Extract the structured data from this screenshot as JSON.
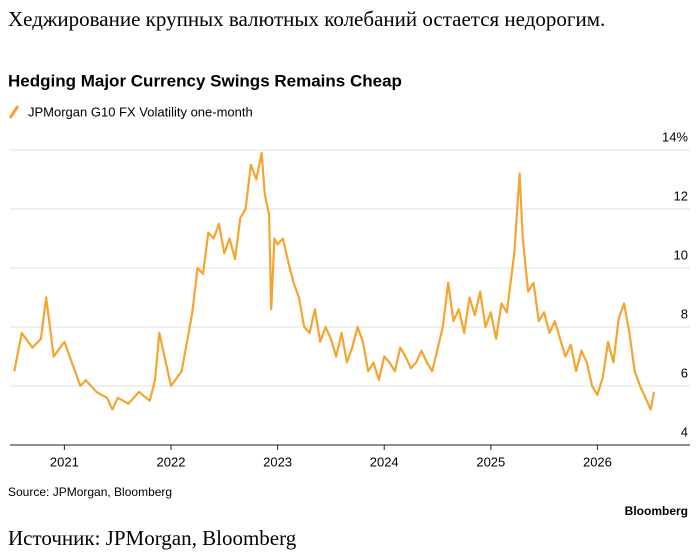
{
  "header": {
    "text": "Хеджирование крупных валютных колебаний остается недорогим."
  },
  "chart_data": {
    "type": "line",
    "title": "Hedging Major Currency Swings Remains Cheap",
    "series": [
      {
        "name": "JPMorgan G10 FX Volatility one-month",
        "color": "#f6a430",
        "values": [
          6.5,
          7.8,
          7.3,
          7.6,
          9.0,
          7.0,
          7.5,
          6.5,
          6.0,
          6.2,
          5.8,
          5.6,
          5.2,
          5.6,
          5.4,
          5.8,
          5.5,
          6.2,
          7.8,
          6.0,
          6.5,
          7.5,
          8.5,
          10.0,
          9.8,
          11.2,
          11.0,
          11.5,
          10.5,
          11.0,
          10.3,
          11.7,
          12.0,
          13.5,
          13.0,
          13.9,
          12.5,
          11.8,
          8.6,
          11.0,
          10.8,
          11.0,
          10.2,
          9.5,
          9.0,
          8.0,
          7.8,
          8.6,
          7.5,
          8.0,
          7.6,
          7.0,
          7.8,
          6.8,
          7.3,
          8.0,
          7.5,
          6.5,
          6.8,
          6.2,
          7.0,
          6.8,
          6.5,
          7.3,
          7.0,
          6.6,
          6.8,
          7.2,
          6.8,
          6.5,
          8.0,
          9.5,
          8.2,
          8.6,
          7.8,
          9.0,
          8.4,
          9.2,
          8.0,
          8.5,
          7.6,
          8.8,
          8.5,
          10.5,
          13.2,
          11.0,
          9.2,
          9.5,
          8.2,
          8.5,
          7.8,
          8.2,
          7.6,
          7.0,
          7.4,
          6.5,
          7.2,
          6.8,
          6.0,
          5.7,
          6.3,
          7.5,
          6.8,
          8.3,
          8.8,
          7.8,
          6.5,
          6.0,
          5.6,
          5.2,
          5.8
        ]
      }
    ],
    "x": [
      2020.53,
      2020.6,
      2020.7,
      2020.78,
      2020.83,
      2020.9,
      2021.0,
      2021.1,
      2021.15,
      2021.2,
      2021.3,
      2021.4,
      2021.45,
      2021.5,
      2021.6,
      2021.7,
      2021.8,
      2021.85,
      2021.89,
      2022.0,
      2022.1,
      2022.15,
      2022.2,
      2022.25,
      2022.3,
      2022.35,
      2022.4,
      2022.45,
      2022.5,
      2022.55,
      2022.6,
      2022.65,
      2022.7,
      2022.75,
      2022.8,
      2022.85,
      2022.88,
      2022.92,
      2022.94,
      2022.97,
      2023.0,
      2023.05,
      2023.1,
      2023.15,
      2023.2,
      2023.25,
      2023.3,
      2023.35,
      2023.4,
      2023.45,
      2023.5,
      2023.55,
      2023.6,
      2023.65,
      2023.7,
      2023.75,
      2023.8,
      2023.85,
      2023.9,
      2023.95,
      2024.0,
      2024.05,
      2024.1,
      2024.15,
      2024.2,
      2024.25,
      2024.3,
      2024.35,
      2024.4,
      2024.45,
      2024.55,
      2024.6,
      2024.65,
      2024.7,
      2024.75,
      2024.8,
      2024.85,
      2024.9,
      2024.95,
      2025.0,
      2025.05,
      2025.1,
      2025.15,
      2025.22,
      2025.27,
      2025.3,
      2025.35,
      2025.4,
      2025.45,
      2025.5,
      2025.55,
      2025.6,
      2025.65,
      2025.7,
      2025.75,
      2025.8,
      2025.85,
      2025.9,
      2025.95,
      2026.0,
      2026.05,
      2026.1,
      2026.15,
      2026.2,
      2026.25,
      2026.3,
      2026.35,
      2026.4,
      2026.45,
      2026.5,
      2026.53
    ],
    "xlim": [
      2020.49,
      2026.54
    ],
    "xticks": [
      2021,
      2022,
      2023,
      2024,
      2025,
      2026
    ],
    "ylim": [
      4,
      14
    ],
    "yticks": [
      4,
      6,
      8,
      10,
      12,
      {
        "value": 14,
        "label": "14%"
      }
    ],
    "grid": true,
    "source": "Source: JPMorgan, Bloomberg",
    "brand": "Bloomberg"
  },
  "footer": {
    "text": "Источник: JPMorgan, Bloomberg"
  }
}
